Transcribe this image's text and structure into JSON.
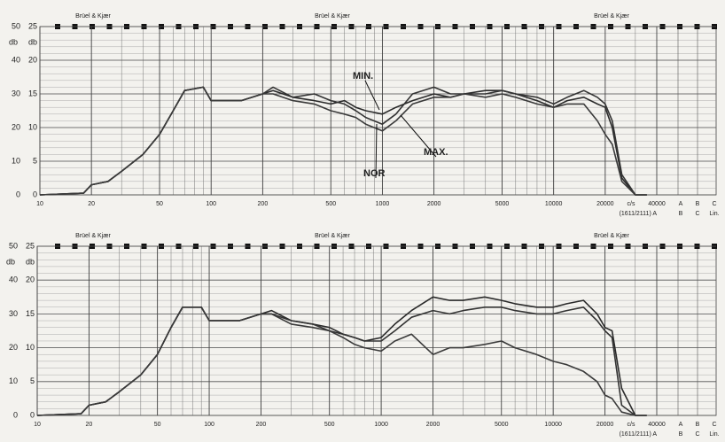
{
  "chart_data": [
    {
      "type": "line",
      "xscale": "log",
      "grid": true,
      "header_labels": [
        "Brüel & Kjær",
        "Brüel & Kjær",
        "Brüel & Kjær"
      ],
      "ylabel": "db",
      "y2label": "db",
      "xlim": [
        10,
        40000
      ],
      "xticks": [
        10,
        20,
        50,
        100,
        200,
        500,
        1000,
        2000,
        5000,
        10000,
        20000,
        40000
      ],
      "ylim": [
        0,
        50
      ],
      "yticks": [
        0,
        10,
        20,
        30,
        40,
        50
      ],
      "y2lim": [
        0,
        25
      ],
      "y2ticks": [
        0,
        5,
        10,
        15,
        20,
        25
      ],
      "footer_row1": [
        "c/s",
        "A",
        "B",
        "C"
      ],
      "footer_row2": [
        "(1611/2111) A",
        "B",
        "C",
        "Lin."
      ],
      "annotations": [
        "MIN.",
        "MAX.",
        "NOR"
      ],
      "x": [
        10,
        18,
        20,
        25,
        30,
        40,
        50,
        60,
        70,
        90,
        100,
        150,
        200,
        230,
        300,
        400,
        500,
        600,
        700,
        800,
        1000,
        1200,
        1500,
        2000,
        2500,
        3000,
        4000,
        5000,
        6000,
        8000,
        10000,
        12000,
        15000,
        18000,
        20000,
        22000,
        25000,
        30000,
        35000
      ],
      "series": [
        {
          "color": "#2a2a2a",
          "values": [
            0,
            0.5,
            3,
            4,
            7,
            12,
            18,
            25,
            31,
            32,
            28,
            28,
            30,
            31,
            29,
            28,
            27,
            28,
            26,
            25,
            24,
            26,
            28,
            30,
            29,
            30,
            31,
            31,
            30,
            28,
            26,
            28,
            29,
            27,
            26,
            20,
            5,
            0,
            0
          ]
        },
        {
          "color": "#333333",
          "values": [
            0,
            0.5,
            3,
            4,
            7,
            12,
            18,
            25,
            31,
            32,
            28,
            28,
            30,
            32,
            29,
            30,
            28,
            27,
            25,
            23,
            21,
            24,
            30,
            32,
            30,
            30,
            30,
            31,
            30,
            29,
            27,
            29,
            31,
            29,
            27,
            22,
            6,
            0,
            0
          ]
        },
        {
          "color": "#3a3a3a",
          "values": [
            0,
            0.5,
            3,
            4,
            7,
            12,
            18,
            25,
            31,
            32,
            28,
            28,
            30,
            30,
            28,
            27,
            25,
            24,
            23,
            21,
            19,
            22,
            27,
            29,
            29,
            30,
            29,
            30,
            29,
            27,
            26,
            27,
            27,
            22,
            18,
            15,
            4,
            0,
            0
          ]
        }
      ]
    },
    {
      "type": "line",
      "xscale": "log",
      "grid": true,
      "header_labels": [
        "Brüel & Kjær",
        "Brüel & Kjær",
        "Brüel & Kjær"
      ],
      "ylabel": "db",
      "y2label": "db",
      "xlim": [
        10,
        40000
      ],
      "xticks": [
        10,
        20,
        50,
        100,
        200,
        500,
        1000,
        2000,
        5000,
        10000,
        20000,
        40000
      ],
      "ylim": [
        0,
        50
      ],
      "yticks": [
        0,
        10,
        20,
        30,
        40,
        50
      ],
      "y2lim": [
        0,
        25
      ],
      "y2ticks": [
        0,
        5,
        10,
        15,
        20,
        25
      ],
      "footer_row1": [
        "c/s",
        "A",
        "B",
        "C"
      ],
      "footer_row2": [
        "(1611/2111) A",
        "B",
        "C",
        "Lin."
      ],
      "x": [
        10,
        18,
        20,
        25,
        30,
        40,
        50,
        60,
        70,
        90,
        100,
        150,
        200,
        230,
        300,
        400,
        500,
        600,
        700,
        800,
        1000,
        1200,
        1500,
        2000,
        2500,
        3000,
        4000,
        5000,
        6000,
        8000,
        10000,
        12000,
        15000,
        18000,
        20000,
        22000,
        25000,
        30000,
        35000
      ],
      "series": [
        {
          "color": "#2a2a2a",
          "values": [
            0,
            0.5,
            3,
            4,
            7,
            12,
            18,
            26,
            32,
            32,
            28,
            28,
            30,
            31,
            28,
            27,
            26,
            24,
            23,
            22,
            23,
            27,
            31,
            35,
            34,
            34,
            35,
            34,
            33,
            32,
            32,
            33,
            34,
            30,
            26,
            25,
            8,
            0,
            0
          ]
        },
        {
          "color": "#333333",
          "values": [
            0,
            0.5,
            3,
            4,
            7,
            12,
            18,
            26,
            32,
            32,
            28,
            28,
            30,
            30,
            28,
            27,
            25,
            24,
            23,
            22,
            22,
            25,
            29,
            31,
            30,
            31,
            32,
            32,
            31,
            30,
            30,
            31,
            32,
            28,
            25,
            23,
            3,
            0,
            0
          ]
        },
        {
          "color": "#3a3a3a",
          "values": [
            0,
            0.5,
            3,
            4,
            7,
            12,
            18,
            26,
            32,
            32,
            28,
            28,
            30,
            30,
            27,
            26,
            25,
            23,
            21,
            20,
            19,
            22,
            24,
            18,
            20,
            20,
            21,
            22,
            20,
            18,
            16,
            15,
            13,
            10,
            6,
            5,
            1,
            0,
            0
          ]
        }
      ]
    }
  ]
}
